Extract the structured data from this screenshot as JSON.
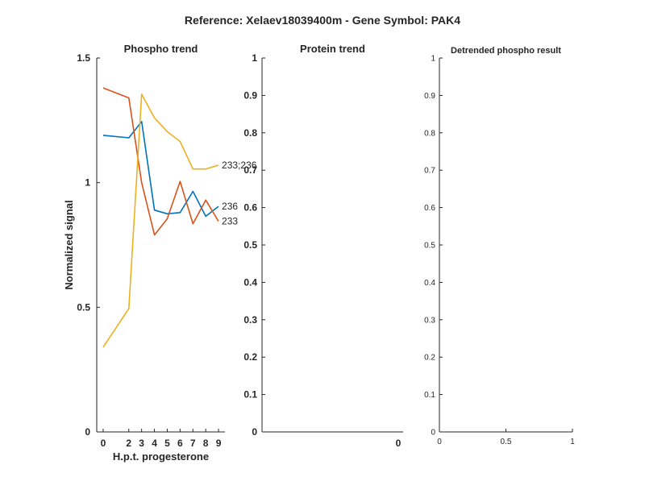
{
  "figure": {
    "title": "Reference:  Xelaev18039400m - Gene Symbol:  PAK4"
  },
  "chart_data": [
    {
      "type": "line",
      "title": "Phospho trend",
      "xlabel": "H.p.t. progesterone",
      "ylabel": "Normalized signal",
      "x": [
        0,
        2,
        3,
        4,
        5,
        6,
        7,
        8,
        9
      ],
      "x_tick_labels": [
        "0",
        "2",
        "3",
        "4",
        "5",
        "6",
        "7",
        "8",
        "9"
      ],
      "xlim": [
        -0.5,
        9.5
      ],
      "ylim": [
        0,
        1.5
      ],
      "y_ticks": [
        0,
        0.5,
        1,
        1.5
      ],
      "y_tick_labels": [
        "0",
        "0.5",
        "1",
        "1.5"
      ],
      "grid": false,
      "series": [
        {
          "name": "236",
          "color": "#0072BD",
          "values": [
            1.19,
            1.18,
            1.245,
            0.89,
            0.875,
            0.88,
            0.965,
            0.865,
            0.905
          ]
        },
        {
          "name": "233",
          "color": "#D95319",
          "values": [
            1.38,
            1.34,
            1.0,
            0.79,
            0.855,
            1.005,
            0.835,
            0.93,
            0.845
          ]
        },
        {
          "name": "233;236",
          "color": "#EDB120",
          "values": [
            0.34,
            0.495,
            1.355,
            1.26,
            1.205,
            1.165,
            1.055,
            1.055,
            1.07
          ]
        }
      ]
    },
    {
      "type": "line",
      "title": "Protein trend",
      "xlabel": "",
      "ylabel": "",
      "ylim": [
        0,
        1
      ],
      "y_ticks": [
        0,
        0.1,
        0.2,
        0.3,
        0.4,
        0.5,
        0.6,
        0.7,
        0.8,
        0.9,
        1
      ],
      "y_tick_labels": [
        "0",
        "0.1",
        "0.2",
        "0.3",
        "0.4",
        "0.5",
        "0.6",
        "0.7",
        "0.8",
        "0.9",
        "1"
      ],
      "x_tick_labels": [
        "0"
      ],
      "grid": false,
      "series": []
    },
    {
      "type": "line",
      "title": "Detrended phospho result",
      "xlabel": "",
      "ylabel": "",
      "xlim": [
        0,
        1
      ],
      "ylim": [
        0,
        1
      ],
      "x_ticks": [
        0,
        0.5,
        1
      ],
      "x_tick_labels": [
        "0",
        "0.5",
        "1"
      ],
      "y_ticks": [
        0,
        0.1,
        0.2,
        0.3,
        0.4,
        0.5,
        0.6,
        0.7,
        0.8,
        0.9,
        1
      ],
      "y_tick_labels": [
        "0",
        "0.1",
        "0.2",
        "0.3",
        "0.4",
        "0.5",
        "0.6",
        "0.7",
        "0.8",
        "0.9",
        "1"
      ],
      "grid": false,
      "series": []
    }
  ]
}
